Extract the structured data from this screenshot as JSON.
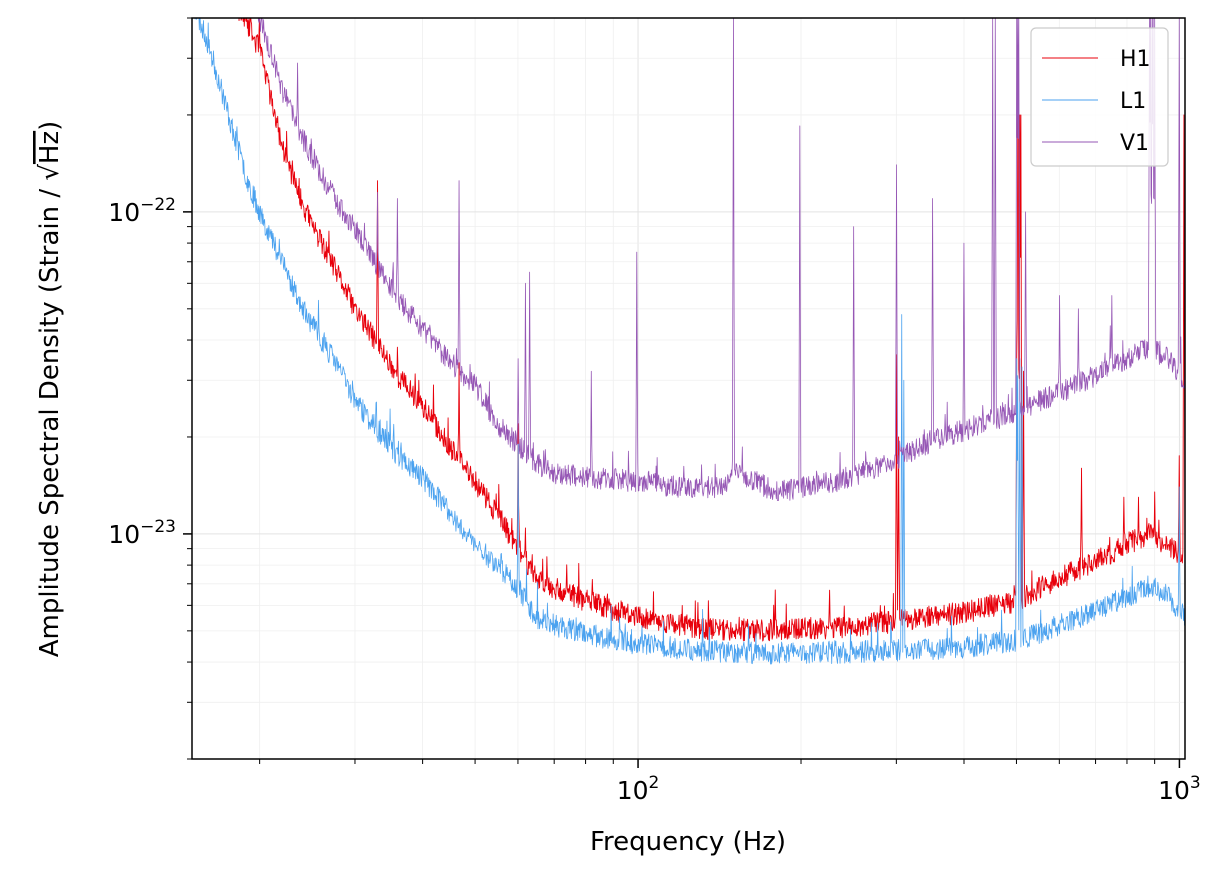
{
  "chart_data": {
    "type": "line",
    "title": "",
    "xlabel": "Frequency (Hz)",
    "ylabel_prefix": "Amplitude Spectral Density (Strain / ",
    "ylabel_sqrt": "√",
    "ylabel_unit": "Hz",
    "ylabel_suffix": ")",
    "xscale": "log",
    "yscale": "log",
    "xlim": [
      15,
      1024
    ],
    "ylim": [
      2e-24,
      4e-22
    ],
    "x_ticks": [
      {
        "base": "10",
        "exp": "2",
        "value": 100
      },
      {
        "base": "10",
        "exp": "3",
        "value": 1000
      }
    ],
    "y_ticks": [
      {
        "base": "10",
        "exp": "−23",
        "value": 1e-23
      },
      {
        "base": "10",
        "exp": "−22",
        "value": 1e-22
      }
    ],
    "grid": true,
    "legend_position": "top-right",
    "series": [
      {
        "name": "H1",
        "color": "#e8000b",
        "baseline": [
          [
            15,
            1.2e-21
          ],
          [
            17,
            6e-22
          ],
          [
            18,
            4.5e-22
          ],
          [
            20,
            3.2e-22
          ],
          [
            22,
            1.6e-22
          ],
          [
            24,
            1.05e-22
          ],
          [
            26,
            8e-23
          ],
          [
            28,
            6.3e-23
          ],
          [
            30,
            5e-23
          ],
          [
            33,
            3.9e-23
          ],
          [
            36,
            3.1e-23
          ],
          [
            40,
            2.5e-23
          ],
          [
            45,
            1.85e-23
          ],
          [
            50,
            1.45e-23
          ],
          [
            55,
            1.15e-23
          ],
          [
            60,
            9e-24
          ],
          [
            65,
            7.3e-24
          ],
          [
            70,
            6.8e-24
          ],
          [
            80,
            6.2e-24
          ],
          [
            100,
            5.5e-24
          ],
          [
            130,
            5.1e-24
          ],
          [
            170,
            5e-24
          ],
          [
            250,
            5.15e-24
          ],
          [
            400,
            5.7e-24
          ],
          [
            500,
            6.2e-24
          ],
          [
            600,
            7.3e-24
          ],
          [
            700,
            8.2e-24
          ],
          [
            800,
            9.3e-24
          ],
          [
            880,
            1e-23
          ],
          [
            950,
            9.2e-24
          ],
          [
            1024,
            8.3e-24
          ]
        ],
        "lines": [
          [
            20,
            4e-22
          ],
          [
            33,
            1.25e-22
          ],
          [
            35.9,
            3.8e-23
          ],
          [
            41.9,
            2.9e-23
          ],
          [
            46.7,
            3.4e-23
          ],
          [
            60,
            2.2e-23
          ],
          [
            300,
            3.6e-23
          ],
          [
            303,
            2e-23
          ],
          [
            500,
            3.5e-23
          ],
          [
            503,
            2e-22
          ],
          [
            504,
            2e-22
          ],
          [
            507,
            2e-22
          ],
          [
            510,
            2e-22
          ],
          [
            515,
            3.2e-23
          ],
          [
            660,
            1.6e-23
          ],
          [
            790,
            1.3e-23
          ],
          [
            840,
            1.3e-23
          ],
          [
            900,
            1.35e-23
          ],
          [
            1000,
            1.75e-23
          ],
          [
            1020,
            2e-22
          ]
        ],
        "noise": 0.07,
        "seed": 11,
        "width": 0.9
      },
      {
        "name": "L1",
        "color": "#4ba2ef",
        "baseline": [
          [
            15,
            4.5e-22
          ],
          [
            16,
            3.4e-22
          ],
          [
            17,
            2.4e-22
          ],
          [
            18,
            1.7e-22
          ],
          [
            19,
            1.25e-22
          ],
          [
            20,
            1e-22
          ],
          [
            22,
            7e-23
          ],
          [
            24,
            5e-23
          ],
          [
            26,
            4e-23
          ],
          [
            28,
            3.3e-23
          ],
          [
            30,
            2.6e-23
          ],
          [
            33,
            2.1e-23
          ],
          [
            36,
            1.75e-23
          ],
          [
            40,
            1.5e-23
          ],
          [
            45,
            1.15e-23
          ],
          [
            50,
            9.3e-24
          ],
          [
            55,
            8e-24
          ],
          [
            60,
            6.8e-24
          ],
          [
            65,
            5.5e-24
          ],
          [
            70,
            5.2e-24
          ],
          [
            80,
            4.9e-24
          ],
          [
            100,
            4.55e-24
          ],
          [
            130,
            4.35e-24
          ],
          [
            170,
            4.25e-24
          ],
          [
            250,
            4.3e-24
          ],
          [
            400,
            4.45e-24
          ],
          [
            500,
            4.65e-24
          ],
          [
            600,
            5.2e-24
          ],
          [
            700,
            5.8e-24
          ],
          [
            800,
            6.4e-24
          ],
          [
            880,
            6.9e-24
          ],
          [
            950,
            6.4e-24
          ],
          [
            1024,
            5.5e-24
          ]
        ],
        "lines": [
          [
            35.9,
            1.4e-23
          ],
          [
            46.7,
            1.05e-23
          ],
          [
            60,
            1.9e-23
          ],
          [
            307,
            4.8e-23
          ],
          [
            310,
            3e-23
          ],
          [
            500,
            3.5e-23
          ],
          [
            503,
            3.1e-23
          ],
          [
            507,
            3.5e-23
          ],
          [
            512,
            3.3e-23
          ],
          [
            1000,
            1.4e-23
          ]
        ],
        "noise": 0.07,
        "seed": 23,
        "width": 0.8
      },
      {
        "name": "V1",
        "color": "#9657b5",
        "baseline": [
          [
            15,
            1.3e-21
          ],
          [
            17,
            7e-22
          ],
          [
            20,
            4e-22
          ],
          [
            22,
            2.4e-22
          ],
          [
            24,
            1.7e-22
          ],
          [
            26,
            1.3e-22
          ],
          [
            28,
            1.05e-22
          ],
          [
            30,
            8.8e-23
          ],
          [
            33,
            6.8e-23
          ],
          [
            36,
            5.4e-23
          ],
          [
            40,
            4.3e-23
          ],
          [
            45,
            3.4e-23
          ],
          [
            50,
            2.9e-23
          ],
          [
            55,
            2.2e-23
          ],
          [
            60,
            1.9e-23
          ],
          [
            65,
            1.65e-23
          ],
          [
            70,
            1.55e-23
          ],
          [
            80,
            1.5e-23
          ],
          [
            100,
            1.45e-23
          ],
          [
            120,
            1.4e-23
          ],
          [
            145,
            1.4e-23
          ],
          [
            150,
            1.6e-23
          ],
          [
            165,
            1.45e-23
          ],
          [
            180,
            1.35e-23
          ],
          [
            230,
            1.45e-23
          ],
          [
            290,
            1.65e-23
          ],
          [
            350,
            1.95e-23
          ],
          [
            400,
            2.1e-23
          ],
          [
            500,
            2.4e-23
          ],
          [
            600,
            2.75e-23
          ],
          [
            700,
            3.1e-23
          ],
          [
            800,
            3.5e-23
          ],
          [
            880,
            3.8e-23
          ],
          [
            950,
            3.5e-23
          ],
          [
            1024,
            3e-23
          ]
        ],
        "lines": [
          [
            23.5,
            2.9e-22
          ],
          [
            33,
            1.15e-22
          ],
          [
            35.9,
            1.1e-22
          ],
          [
            46.7,
            1.25e-22
          ],
          [
            60,
            3.5e-23
          ],
          [
            62,
            6e-23
          ],
          [
            63,
            6.5e-23
          ],
          [
            82,
            3.2e-23
          ],
          [
            99.5,
            7.5e-23
          ],
          [
            150,
            4e-22
          ],
          [
            199,
            1.85e-22
          ],
          [
            250,
            9e-23
          ],
          [
            300,
            1.4e-22
          ],
          [
            350,
            1.1e-22
          ],
          [
            400,
            8e-23
          ],
          [
            452,
            4e-22
          ],
          [
            457,
            4e-22
          ],
          [
            500,
            4e-22
          ],
          [
            503,
            4e-22
          ],
          [
            505,
            4e-22
          ],
          [
            520,
            1e-22
          ],
          [
            600,
            5.5e-23
          ],
          [
            650,
            5e-23
          ],
          [
            750,
            5.5e-23
          ],
          [
            880,
            4e-22
          ],
          [
            885,
            4e-22
          ],
          [
            890,
            4e-22
          ],
          [
            895,
            4e-22
          ],
          [
            900,
            4e-22
          ],
          [
            1000,
            4e-22
          ]
        ],
        "noise": 0.07,
        "seed": 37,
        "width": 0.8
      }
    ]
  }
}
